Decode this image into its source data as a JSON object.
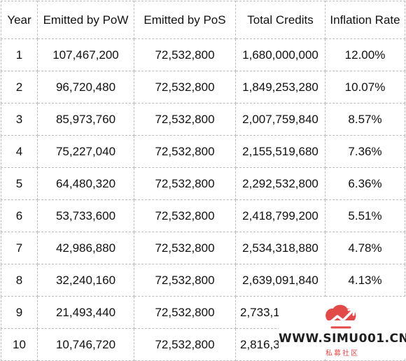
{
  "table": {
    "headers": [
      "Year",
      "Emitted by PoW",
      "Emitted by PoS",
      "Total Credits",
      "Inflation Rate"
    ],
    "rows": [
      [
        "1",
        "107,467,200",
        "72,532,800",
        "1,680,000,000",
        "12.00%"
      ],
      [
        "2",
        "96,720,480",
        "72,532,800",
        "1,849,253,280",
        "10.07%"
      ],
      [
        "3",
        "85,973,760",
        "72,532,800",
        "2,007,759,840",
        "8.57%"
      ],
      [
        "4",
        "75,227,040",
        "72,532,800",
        "2,155,519,680",
        "7.36%"
      ],
      [
        "5",
        "64,480,320",
        "72,532,800",
        "2,292,532,800",
        "6.36%"
      ],
      [
        "6",
        "53,733,600",
        "72,532,800",
        "2,418,799,200",
        "5.51%"
      ],
      [
        "7",
        "42,986,880",
        "72,532,800",
        "2,534,318,880",
        "4.78%"
      ],
      [
        "8",
        "32,240,160",
        "72,532,800",
        "2,639,091,840",
        "4.13%"
      ],
      [
        "9",
        "21,493,440",
        "72,532,800",
        "2,733,11",
        ""
      ],
      [
        "10",
        "10,746,720",
        "72,532,800",
        "2,816,39",
        ""
      ]
    ]
  },
  "watermark": {
    "text": "WWW.SIMU001.CN",
    "subtext": "私募社区",
    "color": "#e24a4a"
  }
}
